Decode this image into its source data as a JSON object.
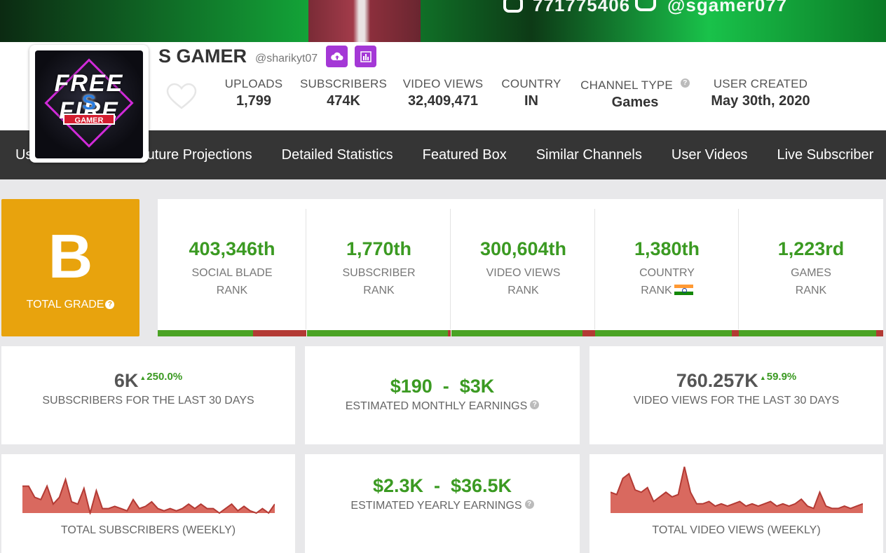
{
  "banner": {
    "phone": "771775406",
    "social": "@sgamer077"
  },
  "avatar": {
    "text_fire": "FREE FIRE",
    "text_s": "S",
    "text_gamer": "GAMER"
  },
  "channel": {
    "name": "S GAMER",
    "handle": "@sharikyt07"
  },
  "stats": {
    "uploads_label": "UPLOADS",
    "uploads": "1,799",
    "subscribers_label": "SUBSCRIBERS",
    "subscribers": "474K",
    "views_label": "VIDEO VIEWS",
    "views": "32,409,471",
    "country_label": "COUNTRY",
    "country": "IN",
    "type_label": "CHANNEL TYPE",
    "type": "Games",
    "created_label": "USER CREATED",
    "created": "May 30th, 2020"
  },
  "nav": [
    "User Summary",
    "Future Projections",
    "Detailed Statistics",
    "Featured Box",
    "Similar Channels",
    "User Videos",
    "Live Subscriber"
  ],
  "grade": {
    "letter": "B",
    "label": "TOTAL GRADE"
  },
  "ranks": [
    {
      "num": "403,346th",
      "line1": "SOCIAL BLADE",
      "line2": "RANK",
      "fill": 0.64
    },
    {
      "num": "1,770th",
      "line1": "SUBSCRIBER",
      "line2": "RANK",
      "fill": 0.98
    },
    {
      "num": "300,604th",
      "line1": "VIDEO VIEWS",
      "line2": "RANK",
      "fill": 0.91
    },
    {
      "num": "1,380th",
      "line1": "COUNTRY",
      "line2": "RANK",
      "fill": 0.95
    },
    {
      "num": "1,223rd",
      "line1": "GAMES",
      "line2": "RANK",
      "fill": 0.95
    }
  ],
  "summary": {
    "subs30": "6K",
    "subs30_delta": "250.0%",
    "subs30_label": "SUBSCRIBERS FOR THE LAST 30 DAYS",
    "monthly": "$190  -  $3K",
    "monthly_label": "ESTIMATED MONTHLY EARNINGS",
    "views30": "760.257K",
    "views30_delta": "59.9%",
    "views30_label": "VIDEO VIEWS FOR THE LAST 30 DAYS",
    "yearly": "$2.3K  -  $36.5K",
    "yearly_label": "ESTIMATED YEARLY EARNINGS",
    "subs_weekly_label": "TOTAL SUBSCRIBERS (WEEKLY)",
    "views_weekly_label": "TOTAL VIDEO VIEWS (WEEKLY)"
  },
  "colors": {
    "accent_green": "#3b9a22",
    "grade_orange": "#e8a30d",
    "nav_dark": "#353535",
    "spark_red": "#b33a34",
    "spark_fill": "#d9695f",
    "purple_btn": "#a438d6"
  },
  "sparklines": {
    "subs": [
      0.6,
      0.6,
      0.35,
      0.3,
      0.6,
      0.2,
      0.35,
      0.75,
      0.25,
      0.2,
      0.55,
      0.0,
      0.5,
      0.1,
      0.1,
      0.15,
      0.1,
      0.05,
      0.3,
      0.1,
      0.15,
      0.25,
      0.1,
      0.05,
      0.1,
      0.05,
      0.1,
      0.2,
      0.1,
      0.2,
      0.1,
      0.1,
      0.0,
      0.1,
      0.2,
      0.05,
      0.15,
      0.05,
      0.0,
      0.1,
      0.0,
      0.2
    ],
    "views": [
      0.45,
      0.4,
      0.75,
      0.85,
      0.5,
      0.45,
      0.55,
      0.25,
      0.35,
      0.45,
      0.35,
      0.4,
      1.0,
      0.45,
      0.2,
      0.2,
      0.25,
      0.15,
      0.2,
      0.15,
      0.2,
      0.25,
      0.15,
      0.2,
      0.15,
      0.2,
      0.25,
      0.15,
      0.2,
      0.15,
      0.2,
      0.3,
      0.15,
      0.1,
      0.45,
      0.15,
      0.1,
      0.1,
      0.15,
      0.1,
      0.15,
      0.2
    ]
  }
}
